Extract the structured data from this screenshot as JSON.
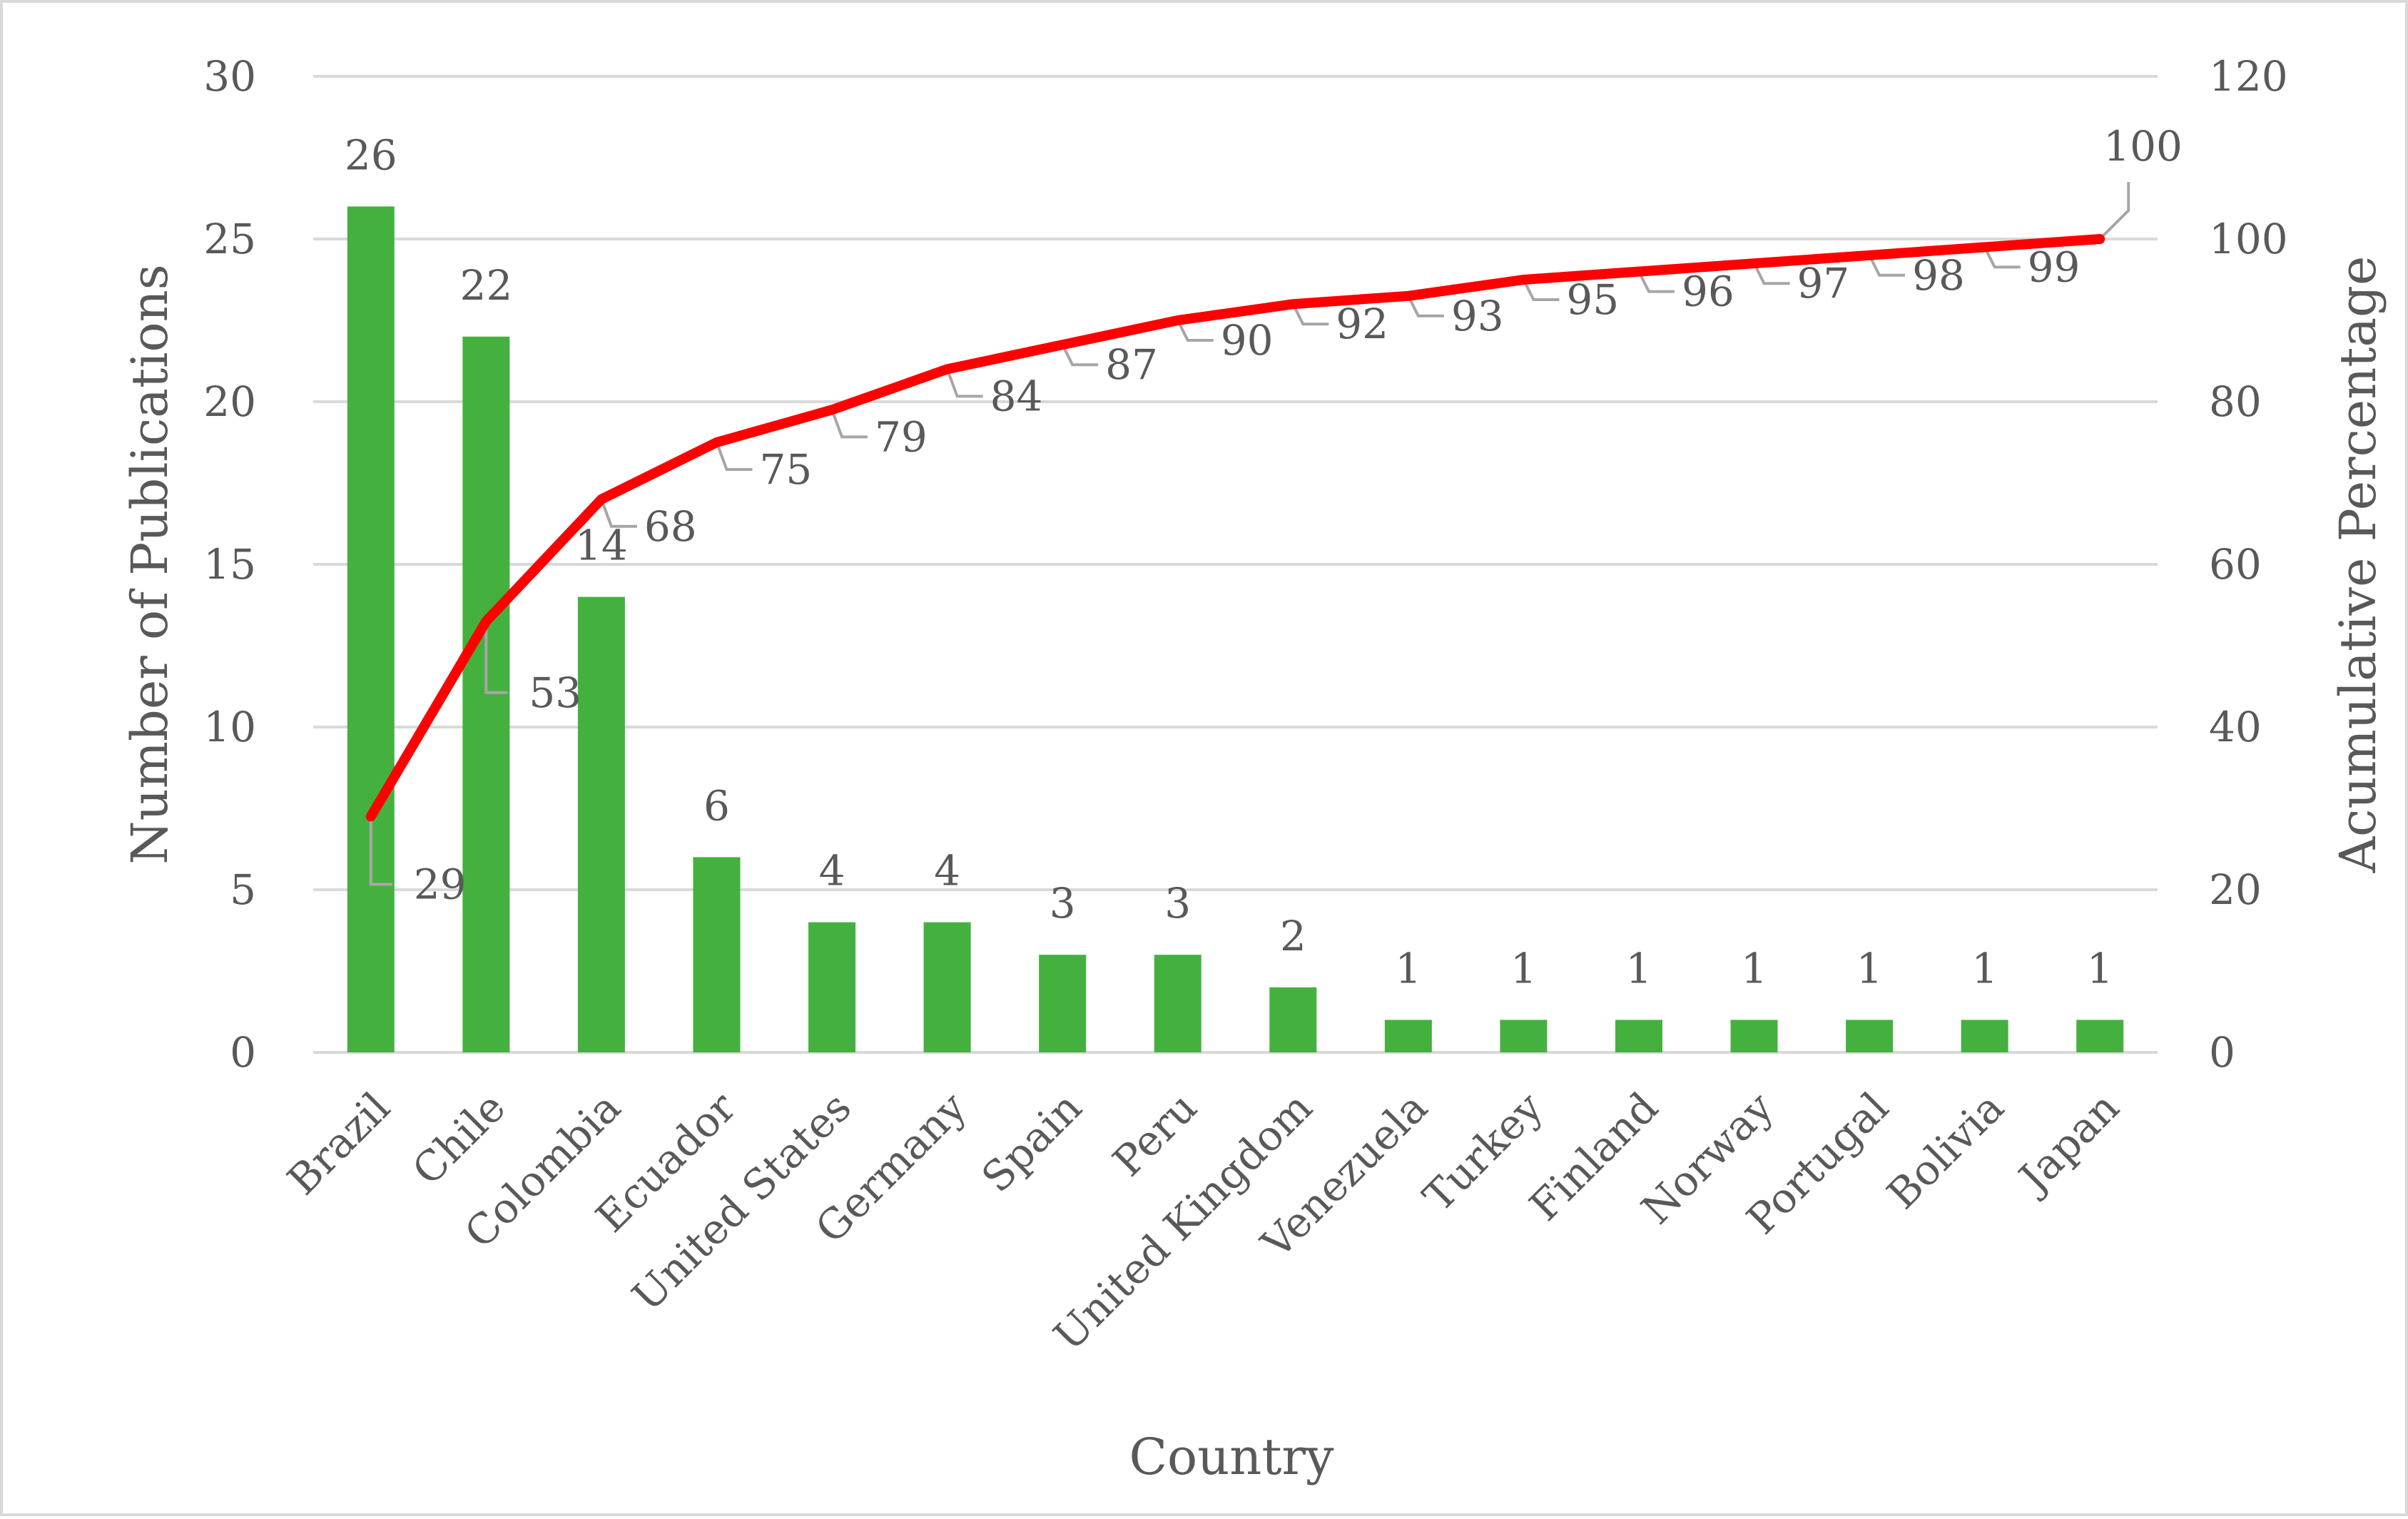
{
  "chart_data": {
    "type": "bar",
    "categories": [
      "Brazil",
      "Chile",
      "Colombia",
      "Ecuador",
      "United States",
      "Germany",
      "Spain",
      "Peru",
      "United Kingdom",
      "Venezuela",
      "Turkey",
      "Finland",
      "Norway",
      "Portugal",
      "Bolivia",
      "Japan"
    ],
    "series": [
      {
        "type": "bar",
        "axis": "left",
        "color": "#44b13f",
        "values": [
          26,
          22,
          14,
          6,
          4,
          4,
          3,
          3,
          2,
          1,
          1,
          1,
          1,
          1,
          1,
          1
        ]
      },
      {
        "type": "line",
        "axis": "right",
        "color": "#ff0000",
        "values": [
          29,
          53,
          68,
          75,
          79,
          84,
          87,
          90,
          92,
          93,
          95,
          96,
          97,
          98,
          99,
          100
        ]
      }
    ],
    "xlabel": "Country",
    "ylabel": "Number of Publications",
    "y2label": "Acumulative Percentage",
    "ylim": [
      0,
      30
    ],
    "y2lim": [
      0,
      120
    ],
    "yticks": [
      "0",
      "5",
      "10",
      "15",
      "20",
      "25",
      "30"
    ],
    "y2ticks": [
      "0",
      "20",
      "40",
      "60",
      "80",
      "100",
      "120"
    ],
    "grid": true,
    "legend": "none",
    "colors": {
      "grid": "#d9d9d9",
      "text": "#595959",
      "leader": "#a6a6a6"
    }
  }
}
